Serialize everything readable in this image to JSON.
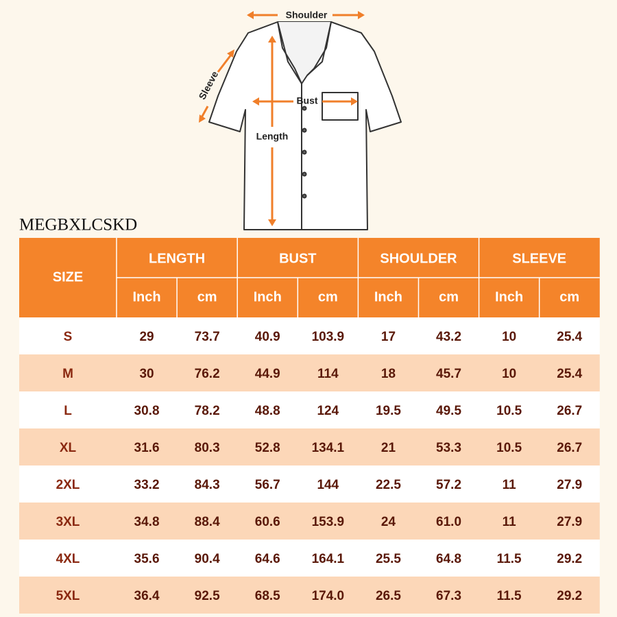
{
  "diagram": {
    "shoulder": "Shoulder",
    "bust": "Bust",
    "length": "Length",
    "sleeve": "Sleeve"
  },
  "code": "MEGBXLCSKD",
  "table": {
    "size_header": "SIZE",
    "groups": [
      "LENGTH",
      "BUST",
      "SHOULDER",
      "SLEEVE"
    ],
    "units": [
      "Inch",
      "cm",
      "Inch",
      "cm",
      "Inch",
      "cm",
      "Inch",
      "cm"
    ],
    "rows": [
      [
        "S",
        "29",
        "73.7",
        "40.9",
        "103.9",
        "17",
        "43.2",
        "10",
        "25.4"
      ],
      [
        "M",
        "30",
        "76.2",
        "44.9",
        "114",
        "18",
        "45.7",
        "10",
        "25.4"
      ],
      [
        "L",
        "30.8",
        "78.2",
        "48.8",
        "124",
        "19.5",
        "49.5",
        "10.5",
        "26.7"
      ],
      [
        "XL",
        "31.6",
        "80.3",
        "52.8",
        "134.1",
        "21",
        "53.3",
        "10.5",
        "26.7"
      ],
      [
        "2XL",
        "33.2",
        "84.3",
        "56.7",
        "144",
        "22.5",
        "57.2",
        "11",
        "27.9"
      ],
      [
        "3XL",
        "34.8",
        "88.4",
        "60.6",
        "153.9",
        "24",
        "61.0",
        "11",
        "27.9"
      ],
      [
        "4XL",
        "35.6",
        "90.4",
        "64.6",
        "164.1",
        "25.5",
        "64.8",
        "11.5",
        "29.2"
      ],
      [
        "5XL",
        "36.4",
        "92.5",
        "68.5",
        "174.0",
        "26.5",
        "67.3",
        "11.5",
        "29.2"
      ]
    ]
  }
}
